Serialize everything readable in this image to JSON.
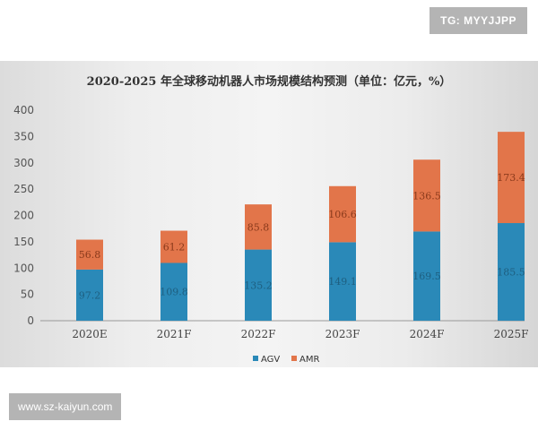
{
  "watermark_top": "TG: MYYJJPP",
  "watermark_bottom": "www.sz-kaiyun.com",
  "colors": {
    "agv": "#2a89b8",
    "amr": "#e2754a"
  },
  "chart_data": {
    "type": "bar",
    "stacked": true,
    "title": "2020-2025 年全球移动机器人市场规模结构预测（单位：亿元，%）",
    "xlabel": "",
    "ylabel": "",
    "categories": [
      "2020E",
      "2021F",
      "2022F",
      "2023F",
      "2024F",
      "2025F"
    ],
    "series": [
      {
        "name": "AGV",
        "values": [
          97.2,
          109.8,
          135.2,
          149.1,
          169.5,
          185.5
        ],
        "color": "#2a89b8"
      },
      {
        "name": "AMR",
        "values": [
          56.8,
          61.2,
          85.8,
          106.6,
          136.5,
          173.4
        ],
        "color": "#e2754a"
      }
    ],
    "data_labels": {
      "AGV": [
        "97.2",
        "109.8",
        "135.2",
        "149.1",
        "169.5",
        "185.5"
      ],
      "AMR": [
        "56.8",
        "61.2",
        "85.8",
        "106.6",
        "136.5",
        "173.4"
      ]
    },
    "yticks": [
      0,
      50,
      100,
      150,
      200,
      250,
      300,
      350,
      400
    ],
    "ylim": [
      0,
      400
    ],
    "grid": false,
    "legend_position": "bottom"
  }
}
